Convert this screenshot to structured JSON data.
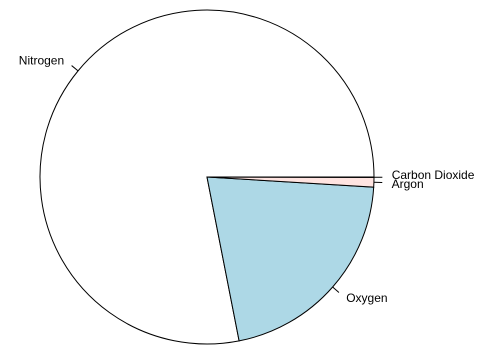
{
  "chart_data": {
    "type": "pie",
    "title": "",
    "start": "3 o'clock",
    "direction": "counter-clockwise",
    "border_color": "#000000",
    "legend": "none",
    "slices": [
      {
        "label": "Nitrogen",
        "value": 78.08,
        "color": "#ffffff"
      },
      {
        "label": "Oxygen",
        "value": 20.95,
        "color": "#add8e6"
      },
      {
        "label": "Argon",
        "value": 0.93,
        "color": "#ffe4e1"
      },
      {
        "label": "Carbon Dioxide",
        "value": 0.04,
        "color": "#e0ffff"
      }
    ]
  }
}
